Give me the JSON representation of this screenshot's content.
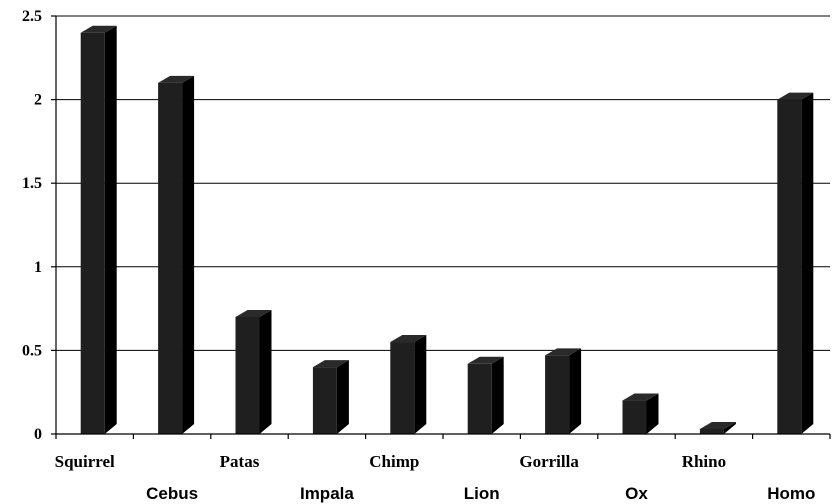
{
  "chart_data": {
    "type": "bar",
    "categories": [
      "Squirrel",
      "Cebus",
      "Patas",
      "Impala",
      "Chimp",
      "Lion",
      "Gorrilla",
      "Ox",
      "Rhino",
      "Homo"
    ],
    "values": [
      2.4,
      2.1,
      0.7,
      0.4,
      0.55,
      0.42,
      0.47,
      0.2,
      0.03,
      2.0
    ],
    "ylim": [
      0,
      2.5
    ],
    "yticks": [
      "0",
      "0.5",
      "1",
      "1.5",
      "2",
      "2.5"
    ],
    "grid": true,
    "legend": "none",
    "colors": {
      "bar_front": "#1f1f1f",
      "bar_side": "#000000",
      "bar_top": "#2a2a2a"
    }
  }
}
